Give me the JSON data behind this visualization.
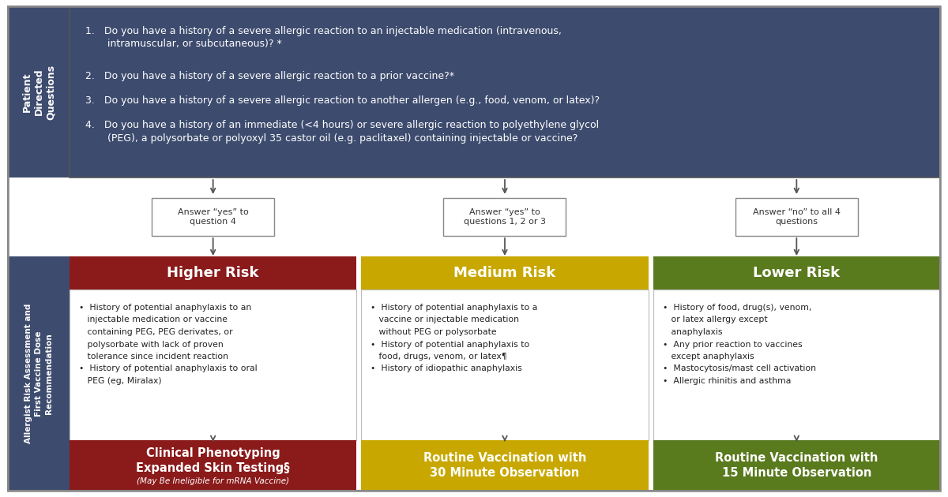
{
  "bg_color": "#ffffff",
  "sidebar_color": "#3d4b6e",
  "sidebar_text_color": "#ffffff",
  "header_box_color": "#3d4b6e",
  "header_text_color": "#ffffff",
  "higher_risk_color": "#8b1a1a",
  "medium_risk_color": "#c8a800",
  "lower_risk_color": "#5a7a1e",
  "arrow_color": "#555555",
  "answer_box_bg": "#ffffff",
  "answer_box_border": "#888888",
  "left_sidebar_label": "Patient\nDirected\nQuestions",
  "right_sidebar_label": "Allergist Risk Assessment and\nFirst Vaccine Dose\nRecommendation",
  "q1": "Do you have a history of a ",
  "q1_italic": "severe",
  "q1_rest": " allergic reaction to an injectable medication (intravenous,\n     intramuscular, or subcutaneous)? *",
  "q2": "Do you have a history of a ",
  "q2_italic": "severe",
  "q2_rest": " allergic reaction to a prior vaccine?*",
  "q3": "Do you have a history of a ",
  "q3_italic": "severe",
  "q3_rest": " allergic reaction to another allergen (e.g., food, venom, or latex)?",
  "q4": "Do you have a history of an ",
  "q4_italic": "immediate",
  "q4_rest": " (<4 hours) or ",
  "q4_italic2": "severe",
  "q4_rest2": " allergic reaction to polyethylene glycol\n     (PEG), a polysorbate or polyoxyl 35 castor oil (e.g. paclitaxel) containing injectable or vaccine?",
  "answer_labels": [
    "Answer “yes” to\nquestion 4",
    "Answer “yes” to\nquestions 1, 2 or 3",
    "Answer “no” to all 4\nquestions"
  ],
  "risk_titles": [
    "Higher Risk",
    "Medium Risk",
    "Lower Risk"
  ],
  "higher_bullets": [
    "•  History of potential anaphylaxis to an",
    "   injectable medication or vaccine",
    "   containing PEG, PEG derivates, or",
    "   polysorbate with lack of proven",
    "   tolerance since incident reaction",
    "•  History of potential anaphylaxis to oral",
    "   PEG (eg, Miralax)"
  ],
  "medium_bullets": [
    "•  History of potential anaphylaxis to a",
    "   vaccine or injectable medication",
    "   without PEG or polysorbate",
    "•  History of potential anaphylaxis to",
    "   food, drugs, venom, or latex¶",
    "•  History of idiopathic anaphylaxis"
  ],
  "lower_bullets": [
    "•  History of food, drug(s), venom,",
    "   or latex allergy except",
    "   anaphylaxis",
    "•  Any prior reaction to vaccines",
    "   except anaphylaxis",
    "•  Mastocytosis/mast cell activation",
    "•  Allergic rhinitis and asthma"
  ],
  "outcome_higher_line1": "Clinical Phenotyping",
  "outcome_higher_line2": "Expanded Skin Testing§",
  "outcome_higher_line3": "(May Be Ineligible for mRNA Vaccine)",
  "outcome_medium_line1": "Routine Vaccination with",
  "outcome_medium_line2": "30 Minute Observation",
  "outcome_lower_line1": "Routine Vaccination with",
  "outcome_lower_line2": "15 Minute Observation",
  "outer_border_color": "#888888"
}
